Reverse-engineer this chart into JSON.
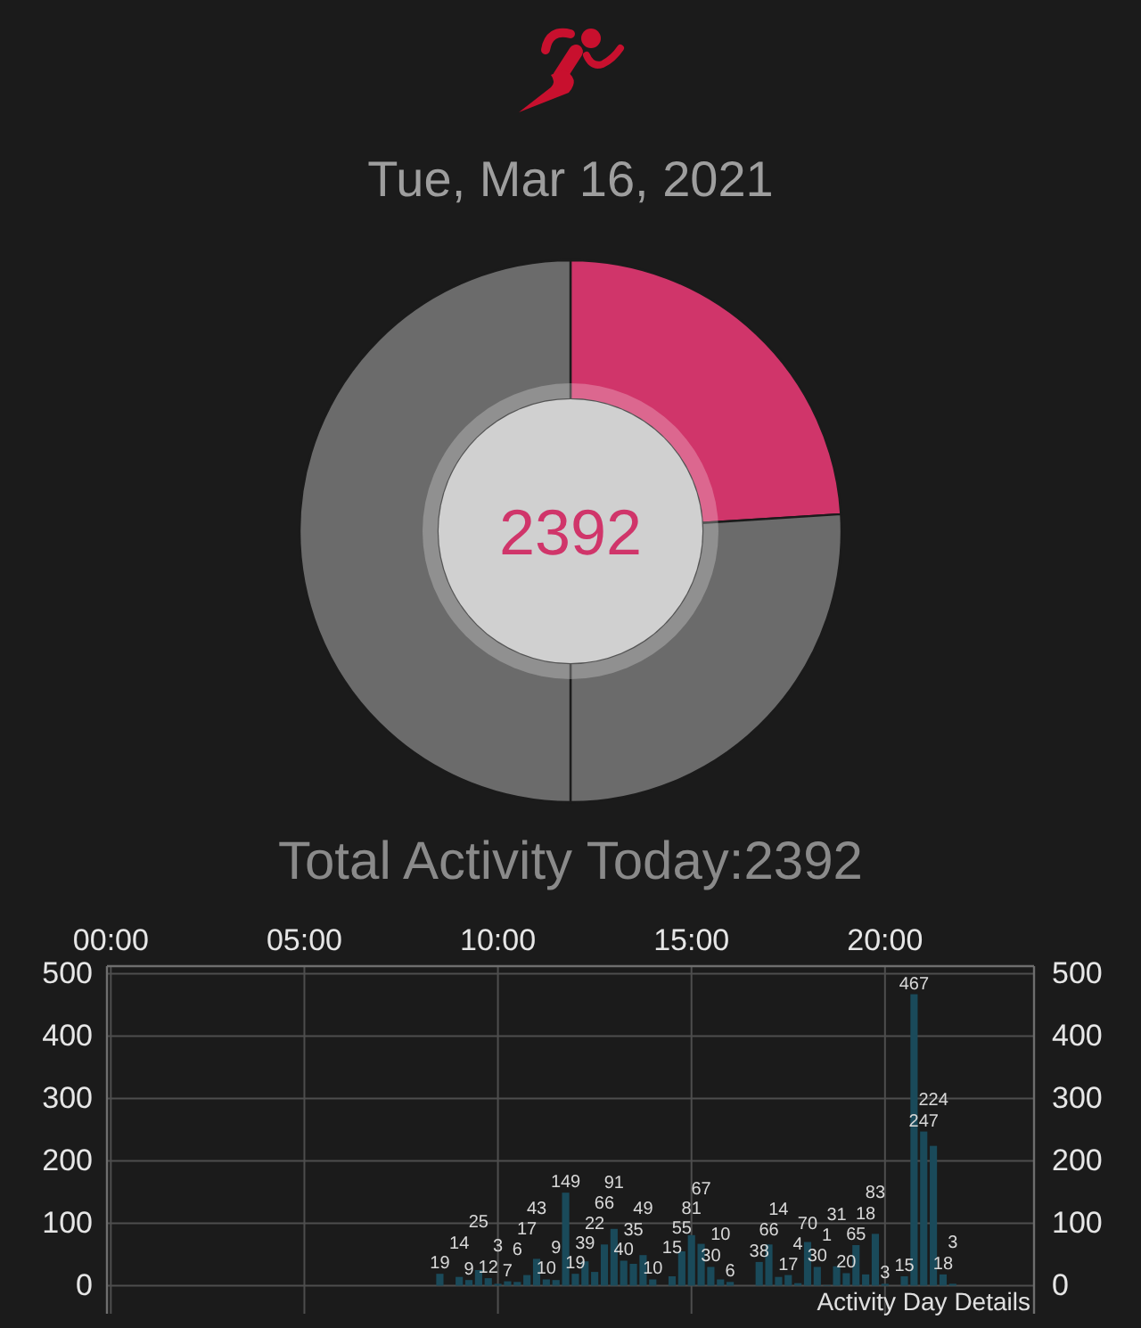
{
  "chart_data": [
    {
      "type": "donut",
      "title": "Tue, Mar 16, 2021",
      "categories": [
        null,
        null,
        null
      ],
      "values": [
        24,
        26,
        50
      ],
      "colors": [
        "#d0356a",
        "#6b6b6b",
        "#6b6b6b"
      ],
      "annotations": [
        "2392",
        "Total Activity Today:2392"
      ]
    },
    {
      "type": "bar",
      "x": [
        8.5,
        9,
        9.25,
        9.5,
        9.75,
        10,
        10.25,
        10.5,
        10.75,
        11,
        11.25,
        11.5,
        11.75,
        12,
        12.25,
        12.5,
        12.75,
        13,
        13.25,
        13.5,
        13.75,
        14,
        14.5,
        14.75,
        15,
        15.25,
        15.5,
        15.75,
        16,
        16.75,
        17,
        17.25,
        17.5,
        17.75,
        18,
        18.25,
        18.5,
        18.75,
        19,
        19.25,
        19.5,
        19.75,
        20,
        20.5,
        20.75,
        21,
        21.25,
        21.5,
        21.75
      ],
      "values": [
        19,
        14,
        9,
        25,
        12,
        3,
        7,
        6,
        17,
        43,
        10,
        9,
        149,
        19,
        39,
        22,
        66,
        91,
        40,
        35,
        49,
        10,
        15,
        55,
        81,
        67,
        30,
        10,
        6,
        38,
        66,
        14,
        17,
        4,
        70,
        30,
        1,
        31,
        20,
        65,
        18,
        83,
        3,
        15,
        467,
        247,
        224,
        18,
        3
      ],
      "color": "#1a4a5a",
      "xlim": [
        -0.1,
        23.85
      ],
      "xticks": [
        {
          "value": 0,
          "label": "00:00"
        },
        {
          "value": 5,
          "label": "05:00"
        },
        {
          "value": 10,
          "label": "10:00"
        },
        {
          "value": 15,
          "label": "15:00"
        },
        {
          "value": 20,
          "label": "20:00"
        }
      ],
      "ylim": [
        -45,
        512
      ],
      "yticks": [
        0,
        100,
        200,
        300,
        400,
        500
      ],
      "y2lim": [
        -45,
        512
      ],
      "y2ticks": [
        0,
        100,
        200,
        300,
        400,
        500
      ],
      "grid": true,
      "data_labels": true,
      "annotations": [
        "Activity Day Details"
      ]
    }
  ]
}
